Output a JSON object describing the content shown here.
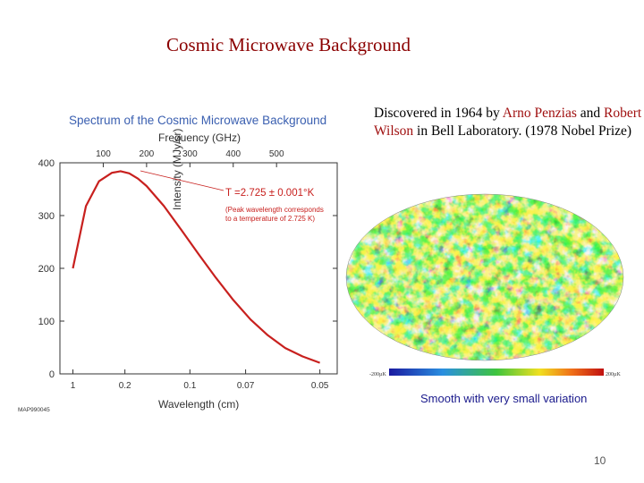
{
  "slide": {
    "title": "Cosmic Microwave Background",
    "page_number": "10"
  },
  "description": {
    "prefix": "Discovered in 1964 by ",
    "person1": "Arno Penzias",
    "middle": " and ",
    "person2": "Robert Wilson",
    "suffix": " in Bell Laboratory. (1978 Nobel Prize)"
  },
  "chart_data": {
    "type": "line",
    "title": "Spectrum of the Cosmic Microwave Background",
    "top_axis_label": "Frequency (GHz)",
    "top_ticks": [
      100,
      200,
      300,
      400,
      500
    ],
    "xlabel": "Wavelength (cm)",
    "bottom_ticks": [
      "1",
      "0.2",
      "0.1",
      "0.07",
      "0.05"
    ],
    "ylabel": "Intensity (MJy/sr)",
    "y_ticks": [
      0,
      100,
      200,
      300,
      400
    ],
    "xlim_ghz": [
      0,
      640
    ],
    "ylim": [
      0,
      400
    ],
    "temperature_label": "T =2.725 ± 0.001°K",
    "annotation": "(Peak wavelength corresponds to a temperature of 2.725 K)",
    "credit": "MAP990045",
    "series": [
      {
        "color": "#c8201e",
        "x_ghz": [
          30,
          60,
          90,
          120,
          140,
          160,
          180,
          200,
          240,
          280,
          320,
          360,
          400,
          440,
          480,
          520,
          560,
          600
        ],
        "y": [
          200,
          318,
          365,
          381,
          384,
          380,
          370,
          356,
          318,
          273,
          227,
          182,
          140,
          103,
          73,
          49,
          33,
          21
        ]
      }
    ]
  },
  "cmb_map": {
    "scale_min": "-200µK",
    "scale_max": "200µK",
    "caption": "Smooth with very small variation"
  }
}
